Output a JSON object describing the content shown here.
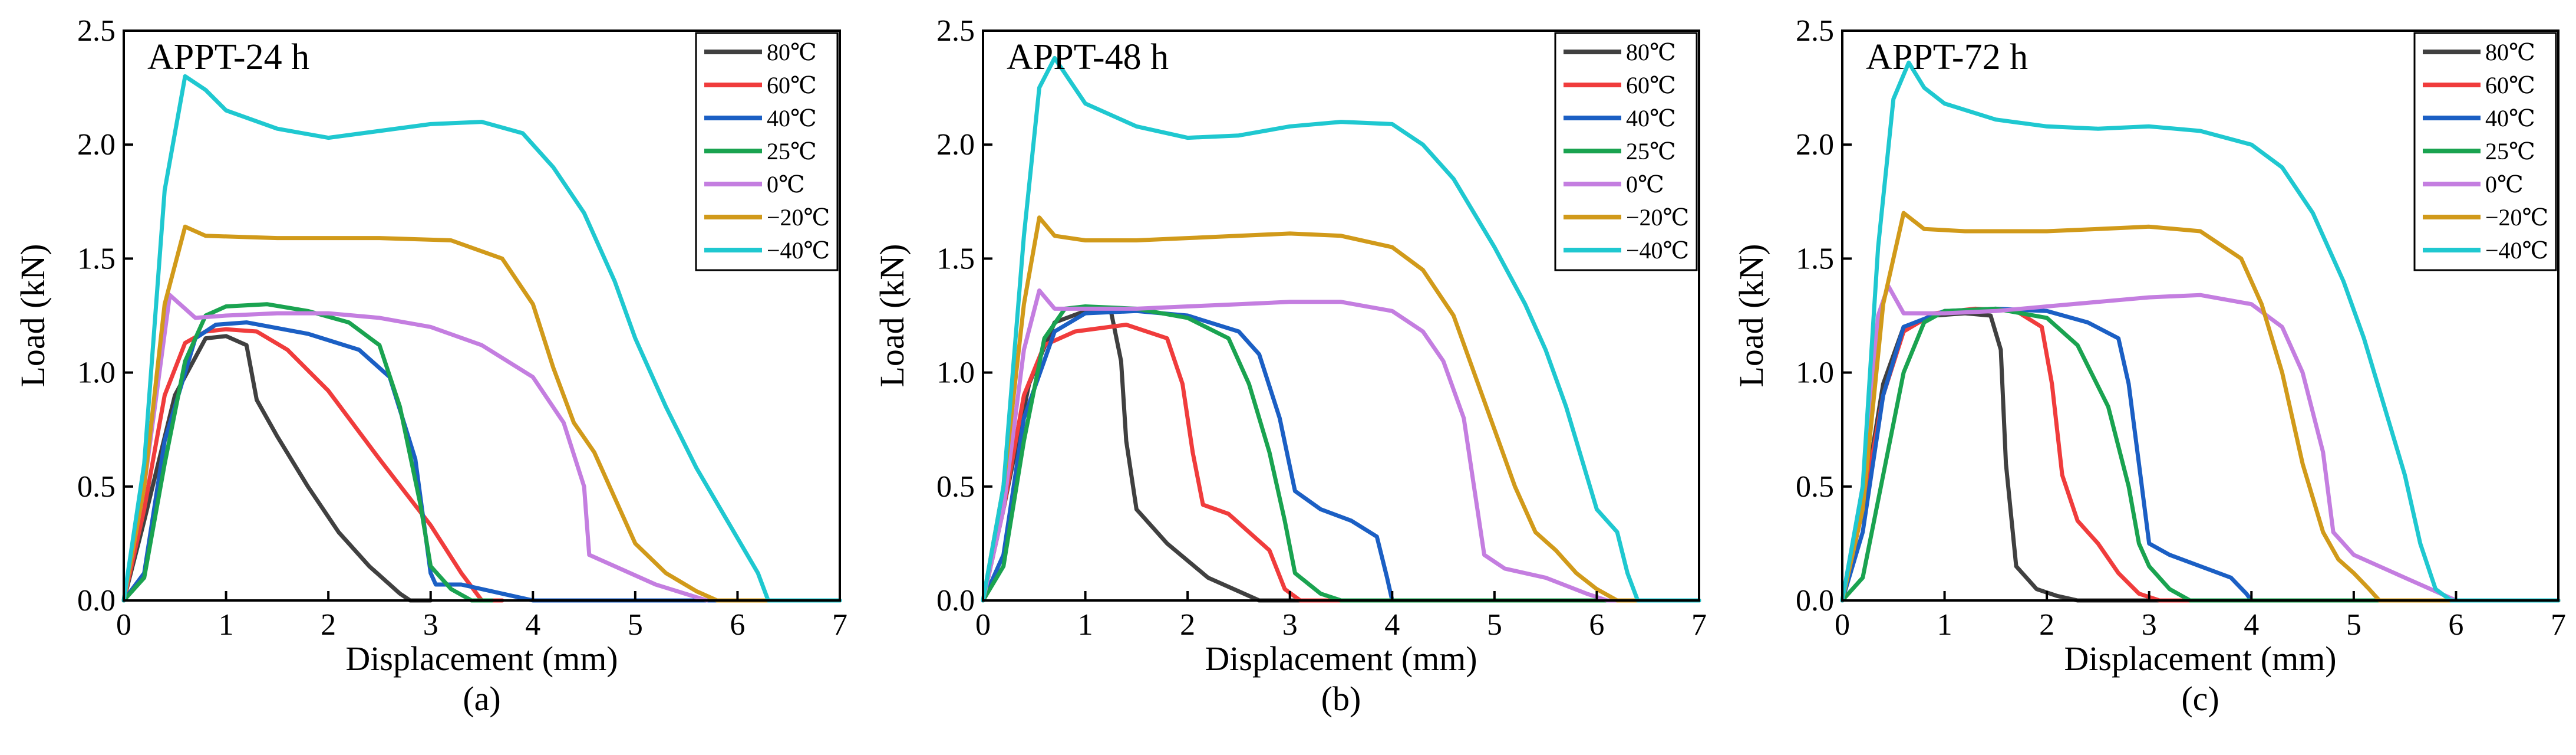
{
  "chart_data": [
    {
      "type": "line",
      "title": "APPT-24 h",
      "caption": "(a)",
      "xlabel": "Displacement (mm)",
      "ylabel": "Load (kN)",
      "xlim": [
        0,
        7
      ],
      "ylim": [
        0,
        2.5
      ],
      "xticks": [
        "0",
        "1",
        "2",
        "3",
        "4",
        "5",
        "6",
        "7"
      ],
      "yticks": [
        "0.0",
        "0.5",
        "1.0",
        "1.5",
        "2.0",
        "2.5"
      ],
      "legend_position": "top-right",
      "series": [
        {
          "name": "80℃",
          "color": "#404040",
          "x": [
            0,
            0.2,
            0.5,
            0.8,
            1.0,
            1.2,
            1.3,
            1.5,
            1.8,
            2.1,
            2.4,
            2.7,
            2.8,
            3.0
          ],
          "y": [
            0,
            0.35,
            0.9,
            1.15,
            1.16,
            1.12,
            0.88,
            0.72,
            0.5,
            0.3,
            0.15,
            0.03,
            0,
            0
          ]
        },
        {
          "name": "60℃",
          "color": "#f03c3c",
          "x": [
            0,
            0.2,
            0.4,
            0.6,
            0.8,
            1.0,
            1.3,
            1.6,
            2.0,
            2.5,
            3.0,
            3.3,
            3.5,
            3.7
          ],
          "y": [
            0,
            0.4,
            0.9,
            1.13,
            1.18,
            1.19,
            1.18,
            1.1,
            0.92,
            0.62,
            0.33,
            0.12,
            0,
            0
          ]
        },
        {
          "name": "40℃",
          "color": "#1b5fc4",
          "x": [
            0,
            0.2,
            0.4,
            0.7,
            0.9,
            1.2,
            1.8,
            2.3,
            2.6,
            2.85,
            3.0,
            3.05,
            3.3,
            3.8,
            4.0,
            7.0
          ],
          "y": [
            0,
            0.12,
            0.7,
            1.15,
            1.21,
            1.22,
            1.17,
            1.1,
            0.98,
            0.62,
            0.12,
            0.07,
            0.07,
            0.02,
            0,
            0
          ]
        },
        {
          "name": "25℃",
          "color": "#1aa350",
          "x": [
            0,
            0.2,
            0.4,
            0.6,
            0.8,
            1.0,
            1.4,
            1.8,
            2.2,
            2.5,
            2.7,
            2.9,
            3.0,
            3.2,
            3.4,
            3.6
          ],
          "y": [
            0,
            0.1,
            0.6,
            1.05,
            1.25,
            1.29,
            1.3,
            1.27,
            1.22,
            1.12,
            0.85,
            0.42,
            0.15,
            0.05,
            0,
            0
          ]
        },
        {
          "name": "0℃",
          "color": "#c47ee0",
          "x": [
            0,
            0.2,
            0.45,
            0.7,
            1.0,
            1.5,
            2.0,
            2.5,
            3.0,
            3.5,
            4.0,
            4.3,
            4.5,
            4.55,
            4.8,
            5.2,
            5.7
          ],
          "y": [
            0,
            0.5,
            1.34,
            1.24,
            1.25,
            1.26,
            1.26,
            1.24,
            1.2,
            1.12,
            0.98,
            0.78,
            0.5,
            0.2,
            0.15,
            0.07,
            0
          ]
        },
        {
          "name": "−20℃",
          "color": "#d19a1a",
          "x": [
            0,
            0.2,
            0.4,
            0.6,
            0.8,
            1.5,
            2.5,
            3.2,
            3.7,
            4.0,
            4.2,
            4.4,
            4.6,
            4.8,
            5.0,
            5.3,
            5.6,
            5.8,
            7.0
          ],
          "y": [
            0,
            0.5,
            1.3,
            1.64,
            1.6,
            1.59,
            1.59,
            1.58,
            1.5,
            1.3,
            1.02,
            0.78,
            0.65,
            0.45,
            0.25,
            0.12,
            0.04,
            0,
            0
          ]
        },
        {
          "name": "−40℃",
          "color": "#1fc8d0",
          "x": [
            0,
            0.2,
            0.4,
            0.6,
            0.8,
            1.0,
            1.5,
            2.0,
            2.5,
            3.0,
            3.5,
            3.9,
            4.2,
            4.5,
            4.8,
            5.0,
            5.3,
            5.6,
            5.9,
            6.2,
            6.3,
            7.0
          ],
          "y": [
            0,
            0.6,
            1.8,
            2.3,
            2.24,
            2.15,
            2.07,
            2.03,
            2.06,
            2.09,
            2.1,
            2.05,
            1.9,
            1.7,
            1.4,
            1.15,
            0.85,
            0.58,
            0.35,
            0.12,
            0,
            0
          ]
        }
      ]
    },
    {
      "type": "line",
      "title": "APPT-48 h",
      "caption": "(b)",
      "xlabel": "Displacement (mm)",
      "ylabel": "Load (kN)",
      "xlim": [
        0,
        7
      ],
      "ylim": [
        0,
        2.5
      ],
      "xticks": [
        "0",
        "1",
        "2",
        "3",
        "4",
        "5",
        "6",
        "7"
      ],
      "yticks": [
        "0.0",
        "0.5",
        "1.0",
        "1.5",
        "2.0",
        "2.5"
      ],
      "legend_position": "top-right",
      "series": [
        {
          "name": "80℃",
          "color": "#404040",
          "x": [
            0,
            0.2,
            0.45,
            0.7,
            1.0,
            1.25,
            1.35,
            1.4,
            1.5,
            1.8,
            2.2,
            2.5,
            2.7,
            7.0
          ],
          "y": [
            0,
            0.4,
            0.95,
            1.22,
            1.27,
            1.27,
            1.05,
            0.7,
            0.4,
            0.25,
            0.1,
            0.04,
            0,
            0
          ]
        },
        {
          "name": "60℃",
          "color": "#f03c3c",
          "x": [
            0,
            0.2,
            0.4,
            0.6,
            0.9,
            1.4,
            1.8,
            1.95,
            2.05,
            2.15,
            2.4,
            2.6,
            2.8,
            2.95,
            3.1,
            7.0
          ],
          "y": [
            0,
            0.4,
            0.9,
            1.12,
            1.18,
            1.21,
            1.15,
            0.95,
            0.65,
            0.42,
            0.38,
            0.3,
            0.22,
            0.05,
            0,
            0
          ]
        },
        {
          "name": "40℃",
          "color": "#1b5fc4",
          "x": [
            0,
            0.2,
            0.4,
            0.7,
            1.0,
            1.5,
            2.0,
            2.5,
            2.7,
            2.9,
            3.05,
            3.3,
            3.6,
            3.85,
            3.95,
            4.0,
            7.0
          ],
          "y": [
            0,
            0.2,
            0.8,
            1.18,
            1.26,
            1.27,
            1.25,
            1.18,
            1.08,
            0.8,
            0.48,
            0.4,
            0.35,
            0.28,
            0.1,
            0,
            0
          ]
        },
        {
          "name": "25℃",
          "color": "#1aa350",
          "x": [
            0,
            0.2,
            0.4,
            0.6,
            0.8,
            1.0,
            1.5,
            2.0,
            2.4,
            2.6,
            2.8,
            2.95,
            3.05,
            3.3,
            3.5,
            7.0
          ],
          "y": [
            0,
            0.15,
            0.7,
            1.15,
            1.28,
            1.29,
            1.28,
            1.24,
            1.15,
            0.95,
            0.65,
            0.35,
            0.12,
            0.03,
            0,
            0
          ]
        },
        {
          "name": "0℃",
          "color": "#c47ee0",
          "x": [
            0,
            0.2,
            0.4,
            0.55,
            0.7,
            1.0,
            1.5,
            2.0,
            2.5,
            3.0,
            3.5,
            4.0,
            4.3,
            4.5,
            4.7,
            4.8,
            4.9,
            5.1,
            5.5,
            5.9,
            6.1,
            7.0
          ],
          "y": [
            0,
            0.4,
            1.1,
            1.36,
            1.28,
            1.28,
            1.28,
            1.29,
            1.3,
            1.31,
            1.31,
            1.27,
            1.18,
            1.05,
            0.8,
            0.5,
            0.2,
            0.14,
            0.1,
            0.03,
            0,
            0
          ]
        },
        {
          "name": "−20℃",
          "color": "#d19a1a",
          "x": [
            0,
            0.2,
            0.4,
            0.55,
            0.7,
            1.0,
            1.5,
            2.0,
            2.5,
            3.0,
            3.5,
            4.0,
            4.3,
            4.6,
            4.8,
            5.0,
            5.2,
            5.4,
            5.6,
            5.8,
            6.0,
            6.2,
            7.0
          ],
          "y": [
            0,
            0.5,
            1.3,
            1.68,
            1.6,
            1.58,
            1.58,
            1.59,
            1.6,
            1.61,
            1.6,
            1.55,
            1.45,
            1.25,
            1.0,
            0.75,
            0.5,
            0.3,
            0.22,
            0.12,
            0.05,
            0,
            0
          ]
        },
        {
          "name": "−40℃",
          "color": "#1fc8d0",
          "x": [
            0,
            0.2,
            0.4,
            0.55,
            0.7,
            0.85,
            1.0,
            1.5,
            2.0,
            2.5,
            3.0,
            3.5,
            4.0,
            4.3,
            4.6,
            5.0,
            5.3,
            5.5,
            5.7,
            5.9,
            6.0,
            6.1,
            6.2,
            6.3,
            6.4,
            7.0
          ],
          "y": [
            0,
            0.5,
            1.6,
            2.25,
            2.38,
            2.28,
            2.18,
            2.08,
            2.03,
            2.04,
            2.08,
            2.1,
            2.09,
            2.0,
            1.85,
            1.55,
            1.3,
            1.1,
            0.85,
            0.55,
            0.4,
            0.35,
            0.3,
            0.12,
            0,
            0
          ]
        }
      ]
    },
    {
      "type": "line",
      "title": "APPT-72 h",
      "caption": "(c)",
      "xlabel": "Displacement (mm)",
      "ylabel": "Load (kN)",
      "xlim": [
        0,
        7
      ],
      "ylim": [
        0,
        2.5
      ],
      "xticks": [
        "0",
        "1",
        "2",
        "3",
        "4",
        "5",
        "6",
        "7"
      ],
      "yticks": [
        "0.0",
        "0.5",
        "1.0",
        "1.5",
        "2.0",
        "2.5"
      ],
      "legend_position": "top-right",
      "series": [
        {
          "name": "80℃",
          "color": "#404040",
          "x": [
            0,
            0.2,
            0.4,
            0.6,
            0.9,
            1.2,
            1.45,
            1.55,
            1.6,
            1.7,
            1.9,
            2.1,
            2.3,
            7.0
          ],
          "y": [
            0,
            0.4,
            0.95,
            1.2,
            1.25,
            1.26,
            1.25,
            1.1,
            0.6,
            0.15,
            0.05,
            0.02,
            0,
            0
          ]
        },
        {
          "name": "60℃",
          "color": "#f03c3c",
          "x": [
            0,
            0.2,
            0.4,
            0.6,
            0.9,
            1.3,
            1.7,
            1.95,
            2.05,
            2.15,
            2.3,
            2.5,
            2.7,
            2.9,
            3.1,
            7.0
          ],
          "y": [
            0,
            0.4,
            0.9,
            1.18,
            1.26,
            1.28,
            1.27,
            1.2,
            0.95,
            0.55,
            0.35,
            0.25,
            0.12,
            0.03,
            0,
            0
          ]
        },
        {
          "name": "40℃",
          "color": "#1b5fc4",
          "x": [
            0,
            0.2,
            0.4,
            0.6,
            1.0,
            1.5,
            2.0,
            2.4,
            2.7,
            2.8,
            2.9,
            3.0,
            3.2,
            3.5,
            3.8,
            3.95,
            4.0,
            7.0
          ],
          "y": [
            0,
            0.3,
            0.9,
            1.2,
            1.27,
            1.28,
            1.27,
            1.22,
            1.15,
            0.95,
            0.6,
            0.25,
            0.2,
            0.15,
            0.1,
            0.03,
            0,
            0
          ]
        },
        {
          "name": "25℃",
          "color": "#1aa350",
          "x": [
            0,
            0.2,
            0.4,
            0.6,
            0.8,
            1.0,
            1.5,
            2.0,
            2.3,
            2.6,
            2.8,
            2.9,
            3.0,
            3.2,
            3.4,
            7.0
          ],
          "y": [
            0,
            0.1,
            0.55,
            1.0,
            1.22,
            1.27,
            1.28,
            1.24,
            1.12,
            0.85,
            0.5,
            0.25,
            0.15,
            0.05,
            0,
            0
          ]
        },
        {
          "name": "0℃",
          "color": "#c47ee0",
          "x": [
            0,
            0.2,
            0.35,
            0.45,
            0.6,
            1.0,
            1.5,
            2.0,
            2.5,
            3.0,
            3.5,
            4.0,
            4.3,
            4.5,
            4.7,
            4.8,
            5.0,
            5.5,
            5.8,
            6.0,
            7.0
          ],
          "y": [
            0,
            0.5,
            1.25,
            1.38,
            1.26,
            1.26,
            1.27,
            1.29,
            1.31,
            1.33,
            1.34,
            1.3,
            1.2,
            1.0,
            0.65,
            0.3,
            0.2,
            0.1,
            0.04,
            0,
            0
          ]
        },
        {
          "name": "−20℃",
          "color": "#d19a1a",
          "x": [
            0,
            0.2,
            0.4,
            0.6,
            0.8,
            1.2,
            1.6,
            2.0,
            2.5,
            3.0,
            3.5,
            3.9,
            4.1,
            4.3,
            4.5,
            4.7,
            4.85,
            5.0,
            5.15,
            5.25,
            7.0
          ],
          "y": [
            0,
            0.4,
            1.3,
            1.7,
            1.63,
            1.62,
            1.62,
            1.62,
            1.63,
            1.64,
            1.62,
            1.5,
            1.3,
            1.0,
            0.6,
            0.3,
            0.18,
            0.12,
            0.05,
            0,
            0
          ]
        },
        {
          "name": "−40℃",
          "color": "#1fc8d0",
          "x": [
            0,
            0.2,
            0.35,
            0.5,
            0.65,
            0.8,
            1.0,
            1.5,
            2.0,
            2.5,
            3.0,
            3.5,
            4.0,
            4.3,
            4.6,
            4.9,
            5.1,
            5.3,
            5.5,
            5.65,
            5.8,
            5.95,
            6.1,
            7.0
          ],
          "y": [
            0,
            0.5,
            1.55,
            2.2,
            2.36,
            2.25,
            2.18,
            2.11,
            2.08,
            2.07,
            2.08,
            2.06,
            2.0,
            1.9,
            1.7,
            1.4,
            1.15,
            0.85,
            0.55,
            0.25,
            0.05,
            0,
            0,
            0
          ]
        }
      ]
    }
  ]
}
